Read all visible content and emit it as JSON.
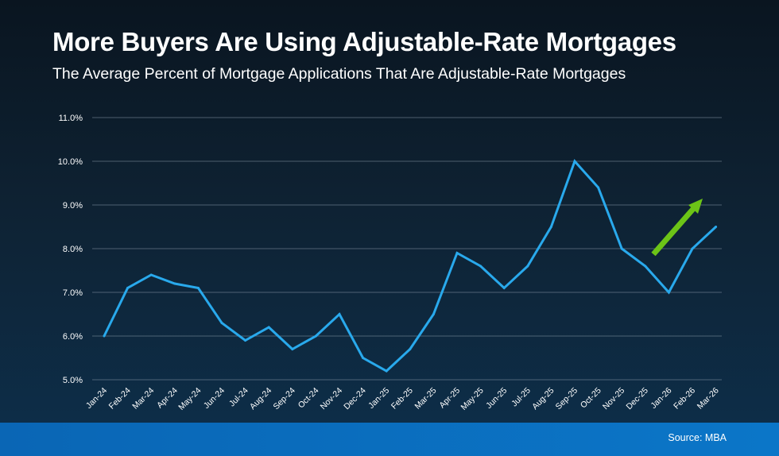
{
  "header": {
    "title": "More Buyers Are Using Adjustable-Rate Mortgages",
    "subtitle": "The Average Percent of Mortgage Applications That Are Adjustable-Rate Mortgages"
  },
  "footer": {
    "source": "Source: MBA"
  },
  "colors": {
    "line": "#29a9ec",
    "arrow": "#6cc417",
    "grid": "#8090a0",
    "text": "#ffffff"
  },
  "chart_data": {
    "type": "line",
    "categories": [
      "Jan-24",
      "Feb-24",
      "Mar-24",
      "Apr-24",
      "May-24",
      "Jun-24",
      "Jul-24",
      "Aug-24",
      "Sep-24",
      "Oct-24",
      "Nov-24",
      "Dec-24",
      "Jan-25",
      "Feb-25",
      "Mar-25",
      "Apr-25",
      "May-25",
      "Jun-25",
      "Jul-25",
      "Aug-25",
      "Sep-25",
      "Oct-25",
      "Nov-25",
      "Dec-25",
      "Jan-26",
      "Feb-26",
      "Mar-26"
    ],
    "values": [
      6.0,
      7.1,
      7.4,
      7.2,
      7.1,
      6.3,
      5.9,
      6.2,
      5.7,
      6.0,
      6.5,
      5.5,
      5.2,
      5.7,
      6.5,
      7.9,
      7.6,
      7.1,
      7.6,
      8.5,
      10.0,
      9.4,
      8.0,
      7.6,
      7.0,
      8.0,
      8.5
    ],
    "yticks": [
      "5.0%",
      "6.0%",
      "7.0%",
      "8.0%",
      "9.0%",
      "10.0%",
      "11.0%"
    ],
    "ylim": [
      5,
      11
    ],
    "grid": true,
    "legend": "none",
    "annotation": "upward-trend-arrow"
  }
}
